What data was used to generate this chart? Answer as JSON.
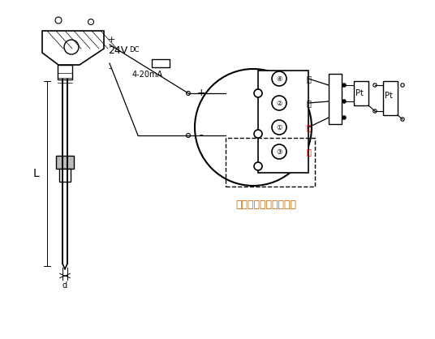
{
  "bg_color": "#ffffff",
  "line_color": "#000000",
  "annotation_color": "#cc6600",
  "note_text": "热电阻：三线或四线制",
  "current_label": "4-20mA",
  "terminal_labels": [
    "白",
    "白",
    "红",
    "红"
  ],
  "terminal_numbers": [
    "④",
    "②",
    "①",
    "③"
  ],
  "pt_label": "Pt",
  "L_label": "L",
  "d_label": "d"
}
